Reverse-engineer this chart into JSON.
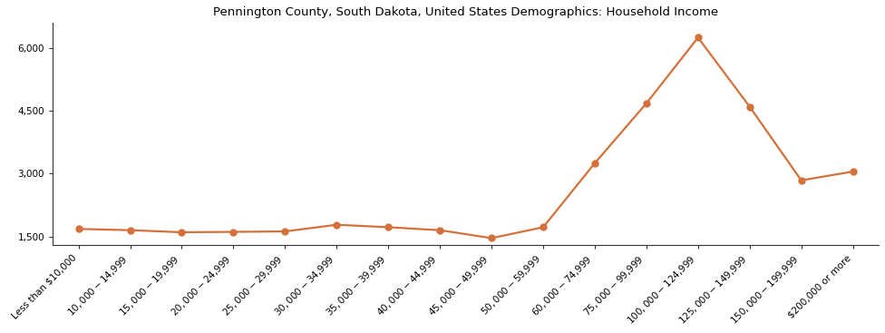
{
  "title": "Pennington County, South Dakota, United States Demographics: Household Income",
  "categories": [
    "Less than $10,000",
    "$10,000 - $14,999",
    "$15,000 - $19,999",
    "$20,000 - $24,999",
    "$25,000 - $29,999",
    "$30,000 - $34,999",
    "$35,000 - $39,999",
    "$40,000 - $44,999",
    "$45,000 - $49,999",
    "$50,000 - $59,999",
    "$60,000 - $74,999",
    "$75,000 - $99,999",
    "$100,000 - $124,999",
    "$125,000 - $149,999",
    "$150,000 - $199,999",
    "$200,000 or more"
  ],
  "values": [
    1680,
    1650,
    1600,
    1610,
    1620,
    1780,
    1720,
    1650,
    1460,
    1720,
    3250,
    4680,
    6250,
    4600,
    2840,
    3050
  ],
  "line_color": "#d4713a",
  "marker_color": "#d4713a",
  "marker_size": 5,
  "line_width": 1.6,
  "yticks": [
    1500,
    3000,
    4500,
    6000
  ],
  "ylim": [
    1300,
    6600
  ],
  "background_color": "#ffffff",
  "title_fontsize": 9.5,
  "tick_fontsize": 7.5,
  "spine_color": "#333333"
}
